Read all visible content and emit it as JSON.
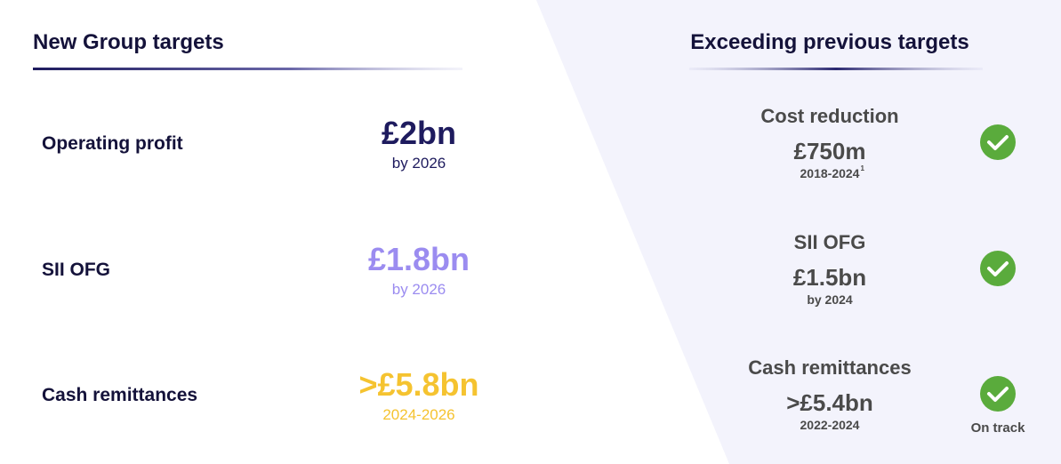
{
  "left": {
    "title": "New Group targets",
    "rows": [
      {
        "label": "Operating profit",
        "value": "£2bn",
        "sub": "by 2026"
      },
      {
        "label": "SII OFG",
        "value": "£1.8bn",
        "sub": "by 2026"
      },
      {
        "label": "Cash remittances",
        "value": ">£5.8bn",
        "sub": "2024-2026"
      }
    ]
  },
  "right": {
    "title": "Exceeding previous targets",
    "rows": [
      {
        "title": "Cost reduction",
        "value": "£750m",
        "sub": "2018-2024",
        "footnote": "1"
      },
      {
        "title": "SII OFG",
        "value": "£1.5bn",
        "sub": "by 2024"
      },
      {
        "title": "Cash remittances",
        "value": ">£5.4bn",
        "sub": "2022-2024",
        "note": "On track"
      }
    ]
  }
}
